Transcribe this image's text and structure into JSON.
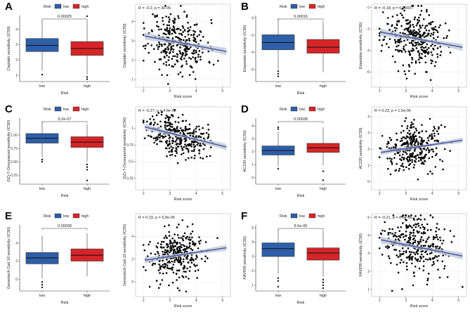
{
  "figure": {
    "colors": {
      "low": "#2E5FA8",
      "high": "#D62528",
      "regression": "#4A5FA5",
      "band": "#BFC6D6",
      "grid": "#EBEBEB",
      "panel_bg": "#FFFFFF",
      "point": "#000000"
    },
    "legend": {
      "title": "Risk",
      "low": "low",
      "high": "high"
    }
  },
  "chart_data": [
    {
      "label": "A",
      "drug": "Cisplatin",
      "box": {
        "type": "boxplot",
        "ylabel": "Cisplatin sensitivity (IC50)",
        "xlabel": "Risk",
        "categories": [
          "low",
          "high"
        ],
        "ylim": [
          0.6,
          4.9
        ],
        "yticks": [
          {
            "v": 1,
            "t": "1"
          },
          {
            "v": 2,
            "t": "2"
          },
          {
            "v": 3,
            "t": "3"
          },
          {
            "v": 4,
            "t": "4"
          }
        ],
        "pvalue": "0.00025",
        "boxes": [
          {
            "group": "low",
            "q1": 2.55,
            "median": 2.95,
            "q3": 3.4,
            "wlo": 1.3,
            "whi": 4.6,
            "outliers": [
              1.05
            ]
          },
          {
            "group": "high",
            "q1": 2.3,
            "median": 2.75,
            "q3": 3.2,
            "wlo": 1.05,
            "whi": 4.55,
            "outliers": [
              0.9,
              0.75,
              4.85
            ]
          }
        ]
      },
      "scatter": {
        "type": "scatter",
        "ylabel": "Cisplatin sensitivity (IC50)",
        "xlabel": "Risk score",
        "stat": "R = -0.2, p = 3e-05",
        "xlim": [
          1.7,
          5.3
        ],
        "ylim": [
          0.6,
          4.9
        ],
        "xticks": [
          2,
          3,
          4,
          5
        ],
        "yticks": [
          1,
          2,
          3,
          4
        ],
        "x_mean": 3.3,
        "y_mean": 2.85,
        "sd_x": 0.55,
        "sd_y": 0.75,
        "fit": {
          "x0": 2.05,
          "y0": 3.25,
          "x1": 5.15,
          "y1": 2.45
        },
        "band": 0.12,
        "n": 320,
        "seed": 11
      }
    },
    {
      "label": "B",
      "drug": "Etoposide",
      "box": {
        "type": "boxplot",
        "ylabel": "Etoposide sensitivity (IC50)",
        "xlabel": "Risk",
        "categories": [
          "low",
          "high"
        ],
        "ylim": [
          -7.4,
          0.3
        ],
        "yticks": [
          {
            "v": -6,
            "t": "-6"
          },
          {
            "v": -4,
            "t": "-4"
          },
          {
            "v": -2,
            "t": "-2"
          },
          {
            "v": 0,
            "t": "0"
          }
        ],
        "pvalue": "0.00016",
        "boxes": [
          {
            "group": "low",
            "q1": -3.7,
            "median": -2.85,
            "q3": -1.95,
            "wlo": -6.0,
            "whi": -0.05,
            "outliers": [
              -6.2,
              -6.5,
              -6.8
            ]
          },
          {
            "group": "high",
            "q1": -4.1,
            "median": -3.4,
            "q3": -2.5,
            "wlo": -6.3,
            "whi": -0.4,
            "outliers": []
          }
        ]
      },
      "scatter": {
        "type": "scatter",
        "ylabel": "Etoposide sensitivity (IC50)",
        "xlabel": "Risk score",
        "stat": "R = -0.18, p = 0.00037",
        "xlim": [
          1.7,
          5.3
        ],
        "ylim": [
          -7.4,
          0.3
        ],
        "xticks": [
          2,
          3,
          4,
          5
        ],
        "yticks": [
          -6,
          -4,
          -2,
          0
        ],
        "x_mean": 3.3,
        "y_mean": -3.0,
        "sd_x": 0.55,
        "sd_y": 1.3,
        "fit": {
          "x0": 2.05,
          "y0": -2.3,
          "x1": 5.15,
          "y1": -3.7
        },
        "band": 0.2,
        "n": 320,
        "seed": 23
      }
    },
    {
      "label": "C",
      "drug": "(5Z)-7-Oxozeaenol",
      "box": {
        "type": "boxplot",
        "ylabel": "(5Z)-7-Oxozeaenol sensitivity (IC50)",
        "xlabel": "Risk",
        "categories": [
          "low",
          "high"
        ],
        "ylim": [
          0.08,
          1.32
        ],
        "yticks": [
          {
            "v": 0.25,
            "t": "0.25"
          },
          {
            "v": 0.5,
            "t": "0.50"
          },
          {
            "v": 0.75,
            "t": "0.75"
          },
          {
            "v": 1.0,
            "t": "1.00"
          }
        ],
        "pvalue": "9.3e-07",
        "boxes": [
          {
            "group": "low",
            "q1": 0.85,
            "median": 0.94,
            "q3": 1.03,
            "wlo": 0.58,
            "whi": 1.25,
            "outliers": [
              0.54,
              0.5
            ]
          },
          {
            "group": "high",
            "q1": 0.77,
            "median": 0.87,
            "q3": 0.97,
            "wlo": 0.5,
            "whi": 1.2,
            "outliers": [
              0.45,
              0.4,
              0.35,
              0.15
            ]
          }
        ]
      },
      "scatter": {
        "type": "scatter",
        "ylabel": "(5Z)-7-Oxozeaenol sensitivity (IC50)",
        "xlabel": "Risk score",
        "stat": "R = -0.27, p = 4.9e-08",
        "xlim": [
          1.7,
          5.3
        ],
        "ylim": [
          0.08,
          1.32
        ],
        "xticks": [
          2,
          3,
          4,
          5
        ],
        "yticks": [
          0.25,
          0.5,
          0.75,
          1.0
        ],
        "x_mean": 3.3,
        "y_mean": 0.9,
        "sd_x": 0.55,
        "sd_y": 0.15,
        "fit": {
          "x0": 2.05,
          "y0": 1.02,
          "x1": 5.15,
          "y1": 0.72
        },
        "band": 0.03,
        "n": 320,
        "seed": 37
      }
    },
    {
      "label": "D",
      "drug": "AC220",
      "box": {
        "type": "boxplot",
        "ylabel": "AC220 sensitivity (IC50)",
        "xlabel": "Risk",
        "categories": [
          "low",
          "high"
        ],
        "ylim": [
          -0.5,
          4.6
        ],
        "yticks": [
          {
            "v": 0,
            "t": "0"
          },
          {
            "v": 1,
            "t": "1"
          },
          {
            "v": 2,
            "t": "2"
          },
          {
            "v": 3,
            "t": "3"
          },
          {
            "v": 4,
            "t": "4"
          }
        ],
        "pvalue": "0.00038",
        "boxes": [
          {
            "group": "low",
            "q1": 1.75,
            "median": 2.1,
            "q3": 2.45,
            "wlo": 0.9,
            "whi": 3.55,
            "outliers": [
              0.7,
              3.75,
              3.9
            ]
          },
          {
            "group": "high",
            "q1": 1.95,
            "median": 2.3,
            "q3": 2.65,
            "wlo": 0.95,
            "whi": 3.9,
            "outliers": [
              0.5,
              -0.2
            ]
          }
        ]
      },
      "scatter": {
        "type": "scatter",
        "ylabel": "AC220 sensitivity (IC50)",
        "xlabel": "Risk score",
        "stat": "R = 0.23, p = 1.5e-06",
        "xlim": [
          1.7,
          5.3
        ],
        "ylim": [
          -0.5,
          4.6
        ],
        "xticks": [
          2,
          3,
          4,
          5
        ],
        "yticks": [
          0,
          1,
          2,
          3,
          4
        ],
        "x_mean": 3.3,
        "y_mean": 2.2,
        "sd_x": 0.55,
        "sd_y": 0.7,
        "fit": {
          "x0": 2.05,
          "y0": 1.8,
          "x1": 5.15,
          "y1": 2.55
        },
        "band": 0.1,
        "n": 320,
        "seed": 41
      }
    },
    {
      "label": "E",
      "drug": "Genentech Cpd 10",
      "box": {
        "type": "boxplot",
        "ylabel": "Genentech Cpd 10 sensitivity (IC50)",
        "xlabel": "Risk",
        "categories": [
          "low",
          "high"
        ],
        "ylim": [
          -1.3,
          6.0
        ],
        "yticks": [
          {
            "v": 0,
            "t": "0"
          },
          {
            "v": 2,
            "t": "2"
          },
          {
            "v": 4,
            "t": "4"
          }
        ],
        "pvalue": "0.00038",
        "boxes": [
          {
            "group": "low",
            "q1": 1.7,
            "median": 2.35,
            "q3": 2.95,
            "wlo": 0.1,
            "whi": 4.8,
            "outliers": [
              -0.3,
              -0.6,
              -0.9
            ]
          },
          {
            "group": "high",
            "q1": 2.0,
            "median": 2.65,
            "q3": 3.35,
            "wlo": 0.3,
            "whi": 5.1,
            "outliers": []
          }
        ]
      },
      "scatter": {
        "type": "scatter",
        "ylabel": "Genentech Cpd 10 sensitivity (IC50)",
        "xlabel": "Risk score",
        "stat": "R = 0.19, p = 6.8e-05",
        "xlim": [
          1.7,
          5.3
        ],
        "ylim": [
          -1.3,
          6.0
        ],
        "xticks": [
          2,
          3,
          4,
          5
        ],
        "yticks": [
          0,
          2,
          4
        ],
        "x_mean": 3.3,
        "y_mean": 2.5,
        "sd_x": 0.55,
        "sd_y": 1.1,
        "fit": {
          "x0": 2.05,
          "y0": 1.9,
          "x1": 5.15,
          "y1": 3.0
        },
        "band": 0.17,
        "n": 320,
        "seed": 53
      }
    },
    {
      "label": "F",
      "drug": "XAV939",
      "box": {
        "type": "boxplot",
        "ylabel": "XAV939 sensitivity (IC50)",
        "xlabel": "Risk",
        "categories": [
          "low",
          "high"
        ],
        "ylim": [
          0.6,
          5.2
        ],
        "yticks": [
          {
            "v": 1,
            "t": "1"
          },
          {
            "v": 2,
            "t": "2"
          },
          {
            "v": 3,
            "t": "3"
          },
          {
            "v": 4,
            "t": "4"
          },
          {
            "v": 5,
            "t": "5"
          }
        ],
        "pvalue": "8.5e-06",
        "boxes": [
          {
            "group": "low",
            "q1": 3.0,
            "median": 3.55,
            "q3": 3.95,
            "wlo": 1.8,
            "whi": 4.9,
            "outliers": [
              1.5,
              1.3,
              0.9
            ]
          },
          {
            "group": "high",
            "q1": 2.75,
            "median": 3.25,
            "q3": 3.6,
            "wlo": 1.6,
            "whi": 4.8,
            "outliers": [
              1.4,
              1.2,
              1.0,
              0.8
            ]
          }
        ]
      },
      "scatter": {
        "type": "scatter",
        "ylabel": "XAV939 sensitivity (IC50)",
        "xlabel": "Risk score",
        "stat": "R = -0.21, p = 8.5e-06",
        "xlim": [
          1.7,
          5.3
        ],
        "ylim": [
          0.6,
          5.2
        ],
        "xticks": [
          2,
          3,
          4,
          5
        ],
        "yticks": [
          1,
          2,
          3,
          4,
          5
        ],
        "x_mean": 3.3,
        "y_mean": 3.3,
        "sd_x": 0.55,
        "sd_y": 0.8,
        "fit": {
          "x0": 2.05,
          "y0": 3.75,
          "x1": 5.15,
          "y1": 2.85
        },
        "band": 0.12,
        "n": 320,
        "seed": 67
      }
    }
  ]
}
